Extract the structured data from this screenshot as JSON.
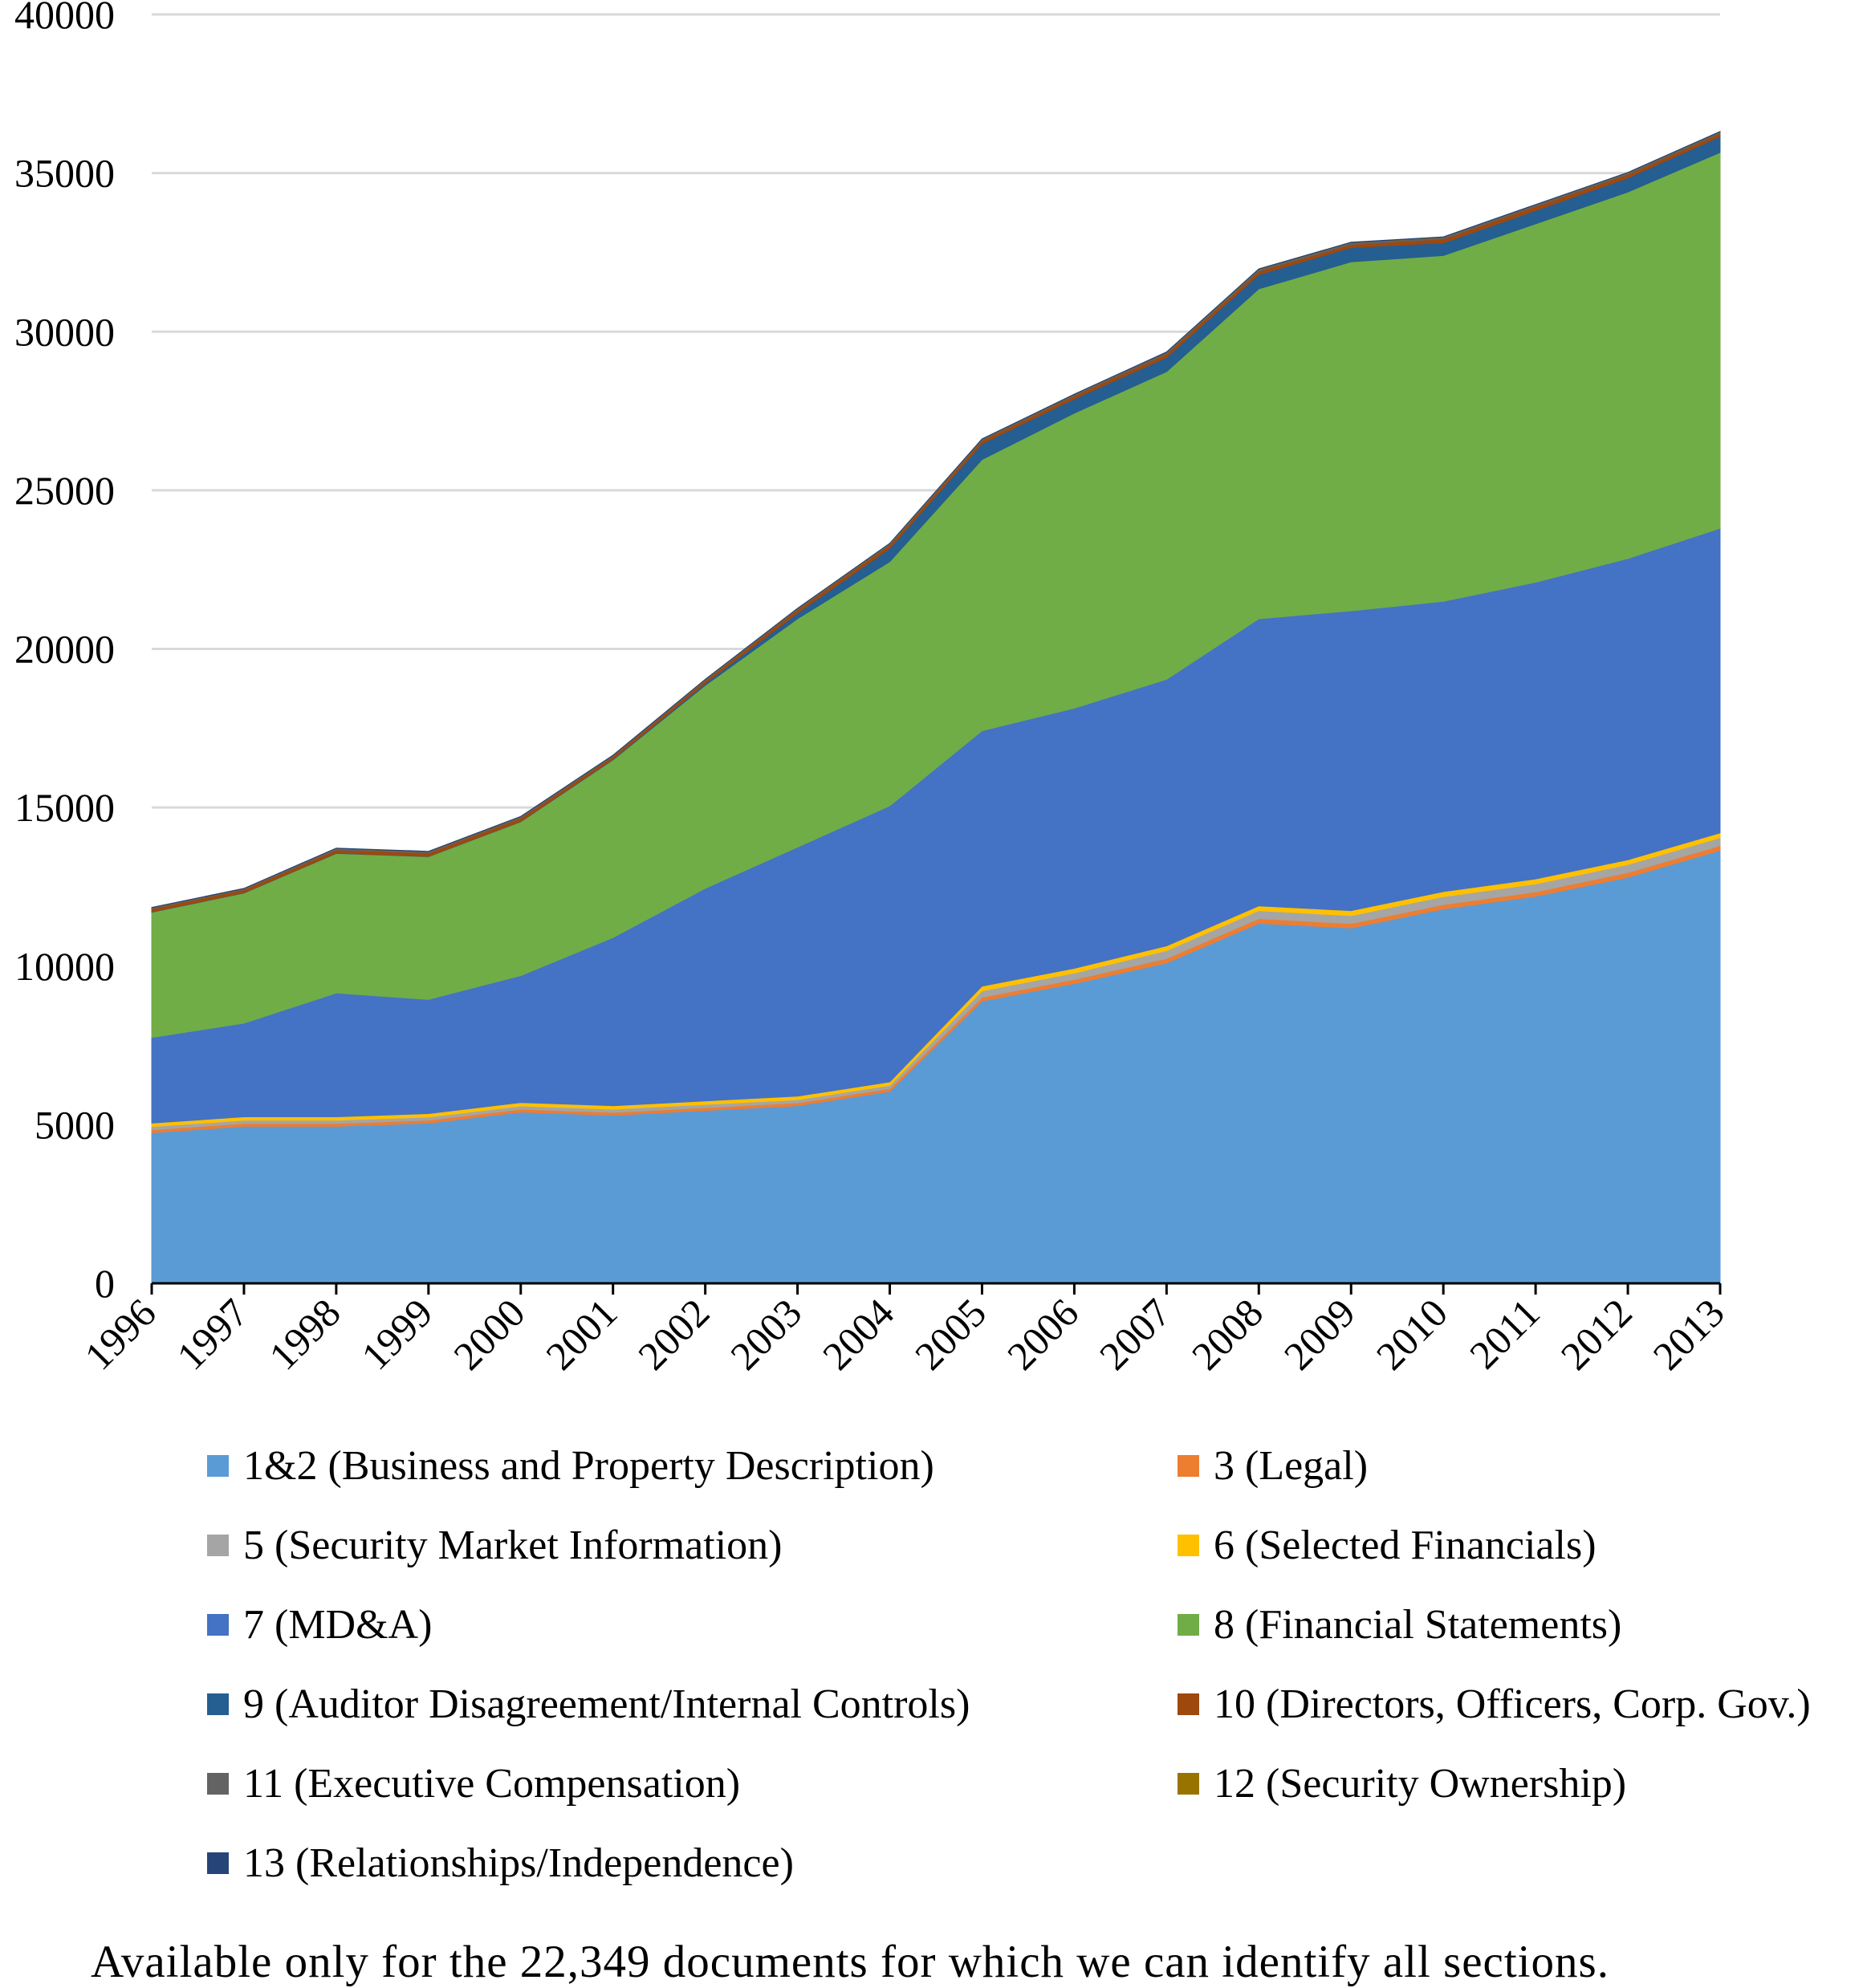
{
  "chart_data": {
    "type": "area",
    "stacked": true,
    "title": "",
    "xlabel": "",
    "ylabel": "",
    "ylim": [
      0,
      40000
    ],
    "yticks": [
      0,
      5000,
      10000,
      15000,
      20000,
      25000,
      30000,
      35000,
      40000
    ],
    "grid": "horizontal",
    "legend_position": "bottom",
    "categories": [
      "1996",
      "1997",
      "1998",
      "1999",
      "2000",
      "2001",
      "2002",
      "2003",
      "2004",
      "2005",
      "2006",
      "2007",
      "2008",
      "2009",
      "2010",
      "2011",
      "2012",
      "2013"
    ],
    "series": [
      {
        "name": "1&2 (Business and Property Description)",
        "color": "#5B9BD5",
        "values": [
          4750,
          4950,
          4950,
          5050,
          5400,
          5300,
          5450,
          5600,
          6050,
          8900,
          9450,
          10100,
          11350,
          11200,
          11800,
          12200,
          12800,
          13650
        ]
      },
      {
        "name": "3 (Legal)",
        "color": "#ED7D31",
        "values": [
          90,
          90,
          90,
          90,
          90,
          90,
          90,
          90,
          90,
          120,
          130,
          140,
          150,
          140,
          140,
          140,
          150,
          150
        ]
      },
      {
        "name": "5 (Security Market Information)",
        "color": "#A5A5A5",
        "values": [
          100,
          100,
          100,
          100,
          100,
          100,
          100,
          100,
          100,
          200,
          200,
          250,
          250,
          250,
          250,
          250,
          250,
          250
        ]
      },
      {
        "name": "6 (Selected Financials)",
        "color": "#FFC000",
        "values": [
          110,
          110,
          110,
          110,
          110,
          110,
          110,
          110,
          110,
          150,
          150,
          150,
          150,
          160,
          160,
          160,
          150,
          150
        ]
      },
      {
        "name": "7 (MD&A)",
        "color": "#4472C4",
        "values": [
          2700,
          2950,
          3900,
          3600,
          4000,
          5300,
          6700,
          7850,
          8700,
          8050,
          8200,
          8400,
          9050,
          9450,
          9150,
          9350,
          9500,
          9600
        ]
      },
      {
        "name": "8 (Financial Statements)",
        "color": "#70AD47",
        "values": [
          3950,
          4100,
          4400,
          4500,
          4850,
          5600,
          6400,
          7200,
          7700,
          8550,
          9300,
          9700,
          10400,
          11000,
          10900,
          11300,
          11550,
          11850
        ]
      },
      {
        "name": "9 (Auditor Disagreement/Internal Controls)",
        "color": "#255E91",
        "values": [
          10,
          10,
          10,
          10,
          10,
          20,
          60,
          180,
          420,
          500,
          450,
          450,
          450,
          450,
          400,
          420,
          450,
          500
        ]
      },
      {
        "name": "10 (Directors, Officers, Corp. Gov.)",
        "color": "#9E480E",
        "values": [
          100,
          100,
          100,
          110,
          110,
          90,
          90,
          110,
          110,
          100,
          100,
          110,
          110,
          100,
          120,
          130,
          110,
          100
        ]
      },
      {
        "name": "11 (Executive Compensation)",
        "color": "#636363",
        "values": [
          20,
          20,
          40,
          30,
          30,
          20,
          20,
          20,
          30,
          30,
          30,
          40,
          50,
          50,
          50,
          40,
          40,
          40
        ]
      },
      {
        "name": "12 (Security Ownership)",
        "color": "#997300",
        "values": [
          10,
          10,
          10,
          10,
          10,
          10,
          10,
          10,
          10,
          10,
          10,
          10,
          10,
          10,
          10,
          10,
          10,
          10
        ]
      },
      {
        "name": "13 (Relationships/Independence)",
        "color": "#264478",
        "values": [
          10,
          10,
          10,
          10,
          10,
          10,
          10,
          10,
          10,
          10,
          10,
          10,
          10,
          10,
          10,
          10,
          10,
          10
        ]
      }
    ],
    "annotation": "Available only for the 22,349 documents for which we can identify all sections."
  }
}
